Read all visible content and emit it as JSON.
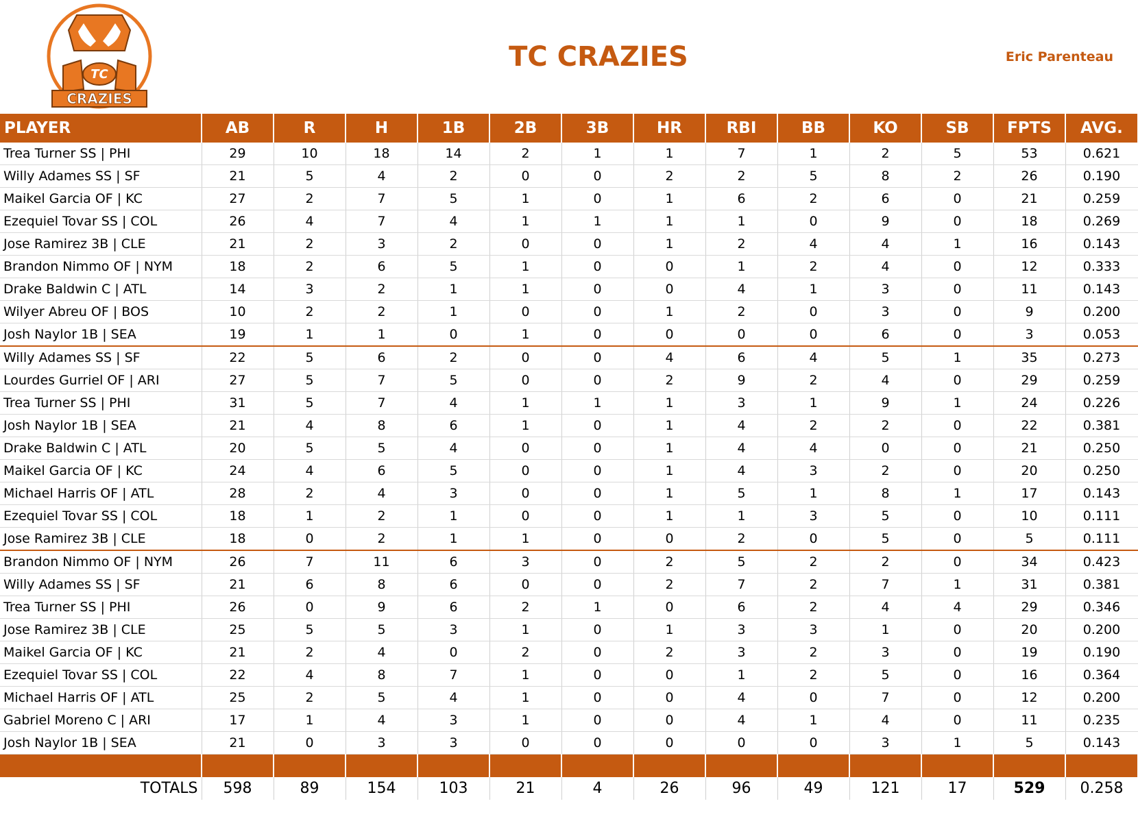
{
  "logo": {
    "top": "TC",
    "banner": "CRAZIES"
  },
  "header": {
    "title": "TC CRAZIES",
    "owner": "Eric Parenteau"
  },
  "table": {
    "columns": [
      "PLAYER",
      "AB",
      "R",
      "H",
      "1B",
      "2B",
      "3B",
      "HR",
      "RBI",
      "BB",
      "KO",
      "SB",
      "FPTS",
      "AVG."
    ],
    "groups": [
      [
        [
          "Trea Turner SS | PHI",
          29,
          10,
          18,
          14,
          2,
          1,
          1,
          7,
          1,
          2,
          5,
          53,
          "0.621"
        ],
        [
          "Willy Adames SS | SF",
          21,
          5,
          4,
          2,
          0,
          0,
          2,
          2,
          5,
          8,
          2,
          26,
          "0.190"
        ],
        [
          "Maikel Garcia OF | KC",
          27,
          2,
          7,
          5,
          1,
          0,
          1,
          6,
          2,
          6,
          0,
          21,
          "0.259"
        ],
        [
          "Ezequiel Tovar SS | COL",
          26,
          4,
          7,
          4,
          1,
          1,
          1,
          1,
          0,
          9,
          0,
          18,
          "0.269"
        ],
        [
          "Jose Ramirez 3B | CLE",
          21,
          2,
          3,
          2,
          0,
          0,
          1,
          2,
          4,
          4,
          1,
          16,
          "0.143"
        ],
        [
          "Brandon Nimmo OF | NYM",
          18,
          2,
          6,
          5,
          1,
          0,
          0,
          1,
          2,
          4,
          0,
          12,
          "0.333"
        ],
        [
          "Drake Baldwin C | ATL",
          14,
          3,
          2,
          1,
          1,
          0,
          0,
          4,
          1,
          3,
          0,
          11,
          "0.143"
        ],
        [
          "Wilyer Abreu OF | BOS",
          10,
          2,
          2,
          1,
          0,
          0,
          1,
          2,
          0,
          3,
          0,
          9,
          "0.200"
        ],
        [
          "Josh Naylor 1B | SEA",
          19,
          1,
          1,
          0,
          1,
          0,
          0,
          0,
          0,
          6,
          0,
          3,
          "0.053"
        ]
      ],
      [
        [
          "Willy Adames SS | SF",
          22,
          5,
          6,
          2,
          0,
          0,
          4,
          6,
          4,
          5,
          1,
          35,
          "0.273"
        ],
        [
          "Lourdes Gurriel OF | ARI",
          27,
          5,
          7,
          5,
          0,
          0,
          2,
          9,
          2,
          4,
          0,
          29,
          "0.259"
        ],
        [
          "Trea Turner SS | PHI",
          31,
          5,
          7,
          4,
          1,
          1,
          1,
          3,
          1,
          9,
          1,
          24,
          "0.226"
        ],
        [
          "Josh Naylor 1B | SEA",
          21,
          4,
          8,
          6,
          1,
          0,
          1,
          4,
          2,
          2,
          0,
          22,
          "0.381"
        ],
        [
          "Drake Baldwin C | ATL",
          20,
          5,
          5,
          4,
          0,
          0,
          1,
          4,
          4,
          0,
          0,
          21,
          "0.250"
        ],
        [
          "Maikel Garcia OF | KC",
          24,
          4,
          6,
          5,
          0,
          0,
          1,
          4,
          3,
          2,
          0,
          20,
          "0.250"
        ],
        [
          "Michael Harris OF | ATL",
          28,
          2,
          4,
          3,
          0,
          0,
          1,
          5,
          1,
          8,
          1,
          17,
          "0.143"
        ],
        [
          "Ezequiel Tovar SS | COL",
          18,
          1,
          2,
          1,
          0,
          0,
          1,
          1,
          3,
          5,
          0,
          10,
          "0.111"
        ],
        [
          "Jose Ramirez 3B | CLE",
          18,
          0,
          2,
          1,
          1,
          0,
          0,
          2,
          0,
          5,
          0,
          5,
          "0.111"
        ]
      ],
      [
        [
          "Brandon Nimmo OF | NYM",
          26,
          7,
          11,
          6,
          3,
          0,
          2,
          5,
          2,
          2,
          0,
          34,
          "0.423"
        ],
        [
          "Willy Adames SS | SF",
          21,
          6,
          8,
          6,
          0,
          0,
          2,
          7,
          2,
          7,
          1,
          31,
          "0.381"
        ],
        [
          "Trea Turner SS | PHI",
          26,
          0,
          9,
          6,
          2,
          1,
          0,
          6,
          2,
          4,
          4,
          29,
          "0.346"
        ],
        [
          "Jose Ramirez 3B | CLE",
          25,
          5,
          5,
          3,
          1,
          0,
          1,
          3,
          3,
          1,
          0,
          20,
          "0.200"
        ],
        [
          "Maikel Garcia OF | KC",
          21,
          2,
          4,
          0,
          2,
          0,
          2,
          3,
          2,
          3,
          0,
          19,
          "0.190"
        ],
        [
          "Ezequiel Tovar SS | COL",
          22,
          4,
          8,
          7,
          1,
          0,
          0,
          1,
          2,
          5,
          0,
          16,
          "0.364"
        ],
        [
          "Michael Harris OF | ATL",
          25,
          2,
          5,
          4,
          1,
          0,
          0,
          4,
          0,
          7,
          0,
          12,
          "0.200"
        ],
        [
          "Gabriel Moreno C | ARI",
          17,
          1,
          4,
          3,
          1,
          0,
          0,
          4,
          1,
          4,
          0,
          11,
          "0.235"
        ],
        [
          "Josh Naylor 1B | SEA",
          21,
          0,
          3,
          3,
          0,
          0,
          0,
          0,
          0,
          3,
          1,
          5,
          "0.143"
        ]
      ]
    ],
    "totals": [
      "TOTALS",
      598,
      89,
      154,
      103,
      21,
      4,
      26,
      96,
      49,
      121,
      17,
      529,
      "0.258"
    ]
  }
}
